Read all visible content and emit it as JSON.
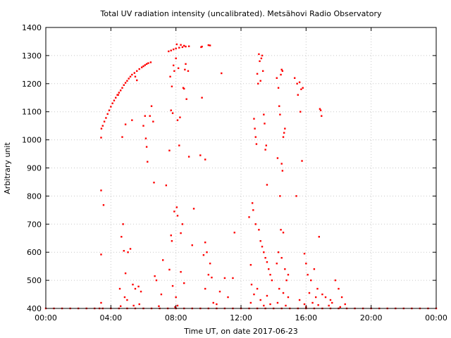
{
  "chart_data": {
    "type": "scatter",
    "title": "Total UV radiation intensity (uncalibrated). Metsähovi Radio Observatory",
    "xlabel": "Time UT, on date 2017-06-23",
    "ylabel": "Arbitrary unit",
    "x_unit": "hours UT",
    "xlim": [
      0,
      24
    ],
    "ylim": [
      400,
      1400
    ],
    "x_ticks": [
      {
        "value": 0,
        "label": "00:00"
      },
      {
        "value": 4,
        "label": "04:00"
      },
      {
        "value": 8,
        "label": "08:00"
      },
      {
        "value": 12,
        "label": "12:00"
      },
      {
        "value": 16,
        "label": "16:00"
      },
      {
        "value": 20,
        "label": "20:00"
      },
      {
        "value": 24,
        "label": "00:00"
      }
    ],
    "y_ticks": [
      400,
      500,
      600,
      700,
      800,
      900,
      1000,
      1100,
      1200,
      1300,
      1400
    ],
    "grid": true,
    "legend": "none",
    "series": [
      {
        "color": "#ff0000",
        "points": [
          [
            3.42,
            1040
          ],
          [
            3.5,
            1050
          ],
          [
            3.6,
            1065
          ],
          [
            3.7,
            1078
          ],
          [
            3.8,
            1092
          ],
          [
            3.9,
            1105
          ],
          [
            4.0,
            1118
          ],
          [
            4.1,
            1130
          ],
          [
            4.2,
            1140
          ],
          [
            4.3,
            1150
          ],
          [
            4.4,
            1160
          ],
          [
            4.5,
            1168
          ],
          [
            4.6,
            1176
          ],
          [
            4.7,
            1185
          ],
          [
            4.8,
            1195
          ],
          [
            4.9,
            1203
          ],
          [
            5.0,
            1210
          ],
          [
            5.1,
            1218
          ],
          [
            5.2,
            1225
          ],
          [
            5.3,
            1232
          ],
          [
            5.45,
            1238
          ],
          [
            5.6,
            1245
          ],
          [
            5.75,
            1252
          ],
          [
            5.9,
            1258
          ],
          [
            6.0,
            1262
          ],
          [
            6.1,
            1266
          ],
          [
            6.2,
            1270
          ],
          [
            6.3,
            1273
          ],
          [
            6.45,
            1276
          ],
          [
            7.55,
            1315
          ],
          [
            7.7,
            1318
          ],
          [
            7.85,
            1322
          ],
          [
            8.0,
            1325
          ],
          [
            8.2,
            1328
          ],
          [
            8.4,
            1330
          ],
          [
            8.6,
            1332
          ],
          [
            8.8,
            1333
          ],
          [
            9.6,
            1332
          ],
          [
            10.0,
            1337
          ],
          [
            10.1,
            1336
          ],
          [
            8.05,
            1340
          ],
          [
            8.3,
            1338
          ],
          [
            8.5,
            1335
          ],
          [
            3.4,
            1008
          ],
          [
            3.4,
            820
          ],
          [
            3.55,
            768
          ],
          [
            3.4,
            592
          ],
          [
            3.4,
            420
          ],
          [
            4.45,
            1160
          ],
          [
            4.7,
            1010
          ],
          [
            4.9,
            1055
          ],
          [
            5.3,
            1070
          ],
          [
            5.5,
            1225
          ],
          [
            5.6,
            1212
          ],
          [
            4.55,
            470
          ],
          [
            4.65,
            655
          ],
          [
            4.75,
            700
          ],
          [
            4.8,
            605
          ],
          [
            5.05,
            600
          ],
          [
            5.2,
            612
          ],
          [
            5.35,
            485
          ],
          [
            5.5,
            470
          ],
          [
            5.7,
            478
          ],
          [
            5.85,
            460
          ],
          [
            4.9,
            525
          ],
          [
            4.6,
            408
          ],
          [
            4.85,
            440
          ],
          [
            5.0,
            430
          ],
          [
            5.4,
            410
          ],
          [
            5.75,
            415
          ],
          [
            6.0,
            1050
          ],
          [
            6.1,
            1085
          ],
          [
            6.15,
            1005
          ],
          [
            6.2,
            975
          ],
          [
            6.25,
            922
          ],
          [
            6.4,
            1085
          ],
          [
            6.5,
            1120
          ],
          [
            6.6,
            1065
          ],
          [
            6.65,
            848
          ],
          [
            6.7,
            515
          ],
          [
            6.8,
            500
          ],
          [
            6.95,
            408
          ],
          [
            7.1,
            450
          ],
          [
            7.2,
            572
          ],
          [
            7.4,
            838
          ],
          [
            7.6,
            538
          ],
          [
            7.65,
            1225
          ],
          [
            7.7,
            1105
          ],
          [
            7.8,
            1095
          ],
          [
            7.75,
            1190
          ],
          [
            7.85,
            1265
          ],
          [
            7.9,
            1245
          ],
          [
            8.0,
            1290
          ],
          [
            8.1,
            1070
          ],
          [
            8.15,
            1255
          ],
          [
            8.2,
            980
          ],
          [
            8.25,
            1080
          ],
          [
            7.6,
            962
          ],
          [
            7.7,
            660
          ],
          [
            7.75,
            640
          ],
          [
            7.9,
            745
          ],
          [
            8.05,
            760
          ],
          [
            8.1,
            730
          ],
          [
            8.3,
            668
          ],
          [
            8.4,
            700
          ],
          [
            8.45,
            1185
          ],
          [
            8.5,
            1182
          ],
          [
            8.55,
            1250
          ],
          [
            8.6,
            1270
          ],
          [
            8.65,
            1145
          ],
          [
            8.75,
            1245
          ],
          [
            8.8,
            940
          ],
          [
            9.0,
            625
          ],
          [
            9.1,
            755
          ],
          [
            8.3,
            530
          ],
          [
            8.5,
            490
          ],
          [
            8.0,
            440
          ],
          [
            8.1,
            410
          ],
          [
            7.8,
            480
          ],
          [
            7.95,
            405
          ],
          [
            9.5,
            945
          ],
          [
            9.8,
            930
          ],
          [
            9.6,
            1150
          ],
          [
            9.55,
            1330
          ],
          [
            9.7,
            590
          ],
          [
            9.8,
            635
          ],
          [
            9.9,
            600
          ],
          [
            10.0,
            520
          ],
          [
            10.1,
            560
          ],
          [
            10.2,
            510
          ],
          [
            9.8,
            470
          ],
          [
            10.3,
            420
          ],
          [
            10.8,
            1237
          ],
          [
            11.0,
            508
          ],
          [
            11.5,
            508
          ],
          [
            11.6,
            670
          ],
          [
            11.2,
            440
          ],
          [
            10.7,
            460
          ],
          [
            10.5,
            415
          ],
          [
            12.5,
            725
          ],
          [
            12.6,
            555
          ],
          [
            12.65,
            485
          ],
          [
            12.7,
            775
          ],
          [
            12.75,
            750
          ],
          [
            12.8,
            1075
          ],
          [
            12.85,
            1040
          ],
          [
            12.9,
            1010
          ],
          [
            12.95,
            985
          ],
          [
            13.0,
            1235
          ],
          [
            13.05,
            1200
          ],
          [
            13.1,
            1305
          ],
          [
            13.15,
            1280
          ],
          [
            13.2,
            1210
          ],
          [
            13.25,
            1290
          ],
          [
            13.3,
            1300
          ],
          [
            13.35,
            1245
          ],
          [
            13.4,
            1090
          ],
          [
            13.45,
            1058
          ],
          [
            13.5,
            965
          ],
          [
            13.55,
            980
          ],
          [
            13.6,
            840
          ],
          [
            12.9,
            700
          ],
          [
            13.1,
            680
          ],
          [
            13.2,
            640
          ],
          [
            13.3,
            620
          ],
          [
            13.4,
            600
          ],
          [
            13.5,
            580
          ],
          [
            13.6,
            565
          ],
          [
            13.7,
            540
          ],
          [
            13.8,
            520
          ],
          [
            13.9,
            500
          ],
          [
            12.6,
            420
          ],
          [
            12.8,
            450
          ],
          [
            13.0,
            470
          ],
          [
            13.2,
            430
          ],
          [
            13.4,
            410
          ],
          [
            13.6,
            445
          ],
          [
            13.8,
            415
          ],
          [
            14.2,
            1220
          ],
          [
            14.3,
            1185
          ],
          [
            14.35,
            1120
          ],
          [
            14.4,
            1090
          ],
          [
            14.45,
            1232
          ],
          [
            14.5,
            1250
          ],
          [
            14.55,
            1245
          ],
          [
            14.6,
            1010
          ],
          [
            14.65,
            1025
          ],
          [
            14.7,
            1040
          ],
          [
            14.25,
            935
          ],
          [
            14.5,
            915
          ],
          [
            14.55,
            890
          ],
          [
            14.4,
            800
          ],
          [
            14.45,
            680
          ],
          [
            14.6,
            670
          ],
          [
            14.3,
            600
          ],
          [
            14.5,
            580
          ],
          [
            14.2,
            560
          ],
          [
            14.7,
            540
          ],
          [
            14.8,
            500
          ],
          [
            14.9,
            520
          ],
          [
            14.35,
            470
          ],
          [
            14.6,
            455
          ],
          [
            14.9,
            440
          ],
          [
            14.25,
            420
          ],
          [
            14.75,
            410
          ],
          [
            15.3,
            1220
          ],
          [
            15.45,
            1200
          ],
          [
            15.6,
            1205
          ],
          [
            15.7,
            1180
          ],
          [
            15.5,
            1160
          ],
          [
            15.65,
            1100
          ],
          [
            15.8,
            1185
          ],
          [
            15.75,
            925
          ],
          [
            15.4,
            800
          ],
          [
            15.9,
            595
          ],
          [
            16.0,
            560
          ],
          [
            16.1,
            520
          ],
          [
            16.3,
            500
          ],
          [
            16.5,
            540
          ],
          [
            16.7,
            470
          ],
          [
            16.8,
            655
          ],
          [
            16.85,
            1110
          ],
          [
            16.9,
            1105
          ],
          [
            16.95,
            1085
          ],
          [
            16.2,
            455
          ],
          [
            16.6,
            440
          ],
          [
            15.6,
            430
          ],
          [
            15.9,
            415
          ],
          [
            16.4,
            420
          ],
          [
            16.0,
            405
          ],
          [
            16.75,
            412
          ],
          [
            17.0,
            450
          ],
          [
            17.2,
            440
          ],
          [
            17.5,
            430
          ],
          [
            17.8,
            500
          ],
          [
            18.0,
            470
          ],
          [
            18.2,
            440
          ],
          [
            18.4,
            415
          ],
          [
            17.4,
            410
          ],
          [
            18.1,
            405
          ],
          [
            17.6,
            420
          ],
          [
            0.0,
            400
          ],
          [
            0.5,
            400
          ],
          [
            1.0,
            400
          ],
          [
            1.5,
            400
          ],
          [
            2.0,
            400
          ],
          [
            2.5,
            400
          ],
          [
            3.0,
            400
          ],
          [
            3.3,
            400
          ],
          [
            3.5,
            400
          ],
          [
            4.0,
            400
          ],
          [
            4.5,
            400
          ],
          [
            5.0,
            400
          ],
          [
            5.5,
            400
          ],
          [
            6.0,
            400
          ],
          [
            6.5,
            400
          ],
          [
            7.0,
            400
          ],
          [
            7.5,
            400
          ],
          [
            8.0,
            400
          ],
          [
            8.5,
            400
          ],
          [
            9.0,
            400
          ],
          [
            9.5,
            400
          ],
          [
            10.0,
            400
          ],
          [
            10.5,
            400
          ],
          [
            11.0,
            400
          ],
          [
            11.5,
            400
          ],
          [
            12.0,
            400
          ],
          [
            12.5,
            400
          ],
          [
            13.0,
            400
          ],
          [
            13.5,
            400
          ],
          [
            14.0,
            400
          ],
          [
            14.5,
            400
          ],
          [
            15.0,
            400
          ],
          [
            15.5,
            400
          ],
          [
            16.0,
            400
          ],
          [
            16.5,
            400
          ],
          [
            17.0,
            400
          ],
          [
            17.5,
            400
          ],
          [
            18.0,
            400
          ],
          [
            18.5,
            400
          ],
          [
            19.0,
            400
          ],
          [
            19.5,
            400
          ],
          [
            20.0,
            400
          ],
          [
            20.5,
            400
          ],
          [
            21.0,
            400
          ],
          [
            21.5,
            400
          ],
          [
            22.0,
            400
          ],
          [
            22.5,
            400
          ],
          [
            23.0,
            400
          ],
          [
            23.5,
            400
          ],
          [
            24.0,
            400
          ]
        ]
      }
    ]
  }
}
